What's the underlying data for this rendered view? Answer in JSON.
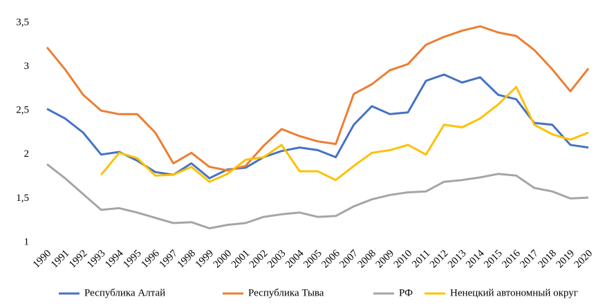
{
  "chart_data": {
    "type": "line",
    "categories": [
      "1990",
      "1991",
      "1992",
      "1993",
      "1994",
      "1995",
      "1996",
      "1997",
      "1998",
      "1999",
      "2000",
      "2001",
      "2002",
      "2003",
      "2004",
      "2005",
      "2006",
      "2007",
      "2008",
      "2009",
      "2010",
      "2011",
      "2012",
      "2013",
      "2014",
      "2015",
      "2016",
      "2017",
      "2018",
      "2019",
      "2020"
    ],
    "series": [
      {
        "name": "Республика Алтай",
        "color": "#4472c4",
        "values": [
          2.52,
          2.41,
          2.25,
          2.0,
          2.03,
          1.93,
          1.8,
          1.77,
          1.9,
          1.73,
          1.83,
          1.85,
          1.97,
          2.04,
          2.08,
          2.05,
          1.97,
          2.34,
          2.55,
          2.46,
          2.48,
          2.84,
          2.91,
          2.82,
          2.88,
          2.68,
          2.63,
          2.36,
          2.34,
          2.11,
          2.08
        ]
      },
      {
        "name": "Республика Тыва",
        "color": "#ed7d31",
        "values": [
          3.22,
          2.97,
          2.68,
          2.5,
          2.46,
          2.46,
          2.25,
          1.9,
          2.02,
          1.86,
          1.82,
          1.87,
          2.1,
          2.29,
          2.21,
          2.15,
          2.12,
          2.69,
          2.8,
          2.96,
          3.03,
          3.25,
          3.34,
          3.41,
          3.46,
          3.39,
          3.35,
          3.19,
          2.97,
          2.72,
          2.98
        ]
      },
      {
        "name": "РФ",
        "color": "#a5a5a5",
        "values": [
          1.89,
          1.73,
          1.55,
          1.37,
          1.39,
          1.34,
          1.28,
          1.22,
          1.23,
          1.16,
          1.2,
          1.22,
          1.29,
          1.32,
          1.34,
          1.29,
          1.3,
          1.41,
          1.49,
          1.54,
          1.57,
          1.58,
          1.69,
          1.71,
          1.74,
          1.78,
          1.76,
          1.62,
          1.58,
          1.5,
          1.51
        ]
      },
      {
        "name": "Ненецкий автономный округ",
        "color": "#ffc000",
        "values": [
          null,
          null,
          null,
          1.77,
          2.02,
          1.96,
          1.76,
          1.77,
          1.86,
          1.69,
          1.78,
          1.94,
          1.97,
          2.11,
          1.81,
          1.81,
          1.71,
          1.87,
          2.02,
          2.05,
          2.11,
          2.0,
          2.34,
          2.31,
          2.41,
          2.57,
          2.77,
          2.34,
          2.23,
          2.17,
          2.25
        ]
      }
    ],
    "ylim": [
      1,
      3.5
    ],
    "yticks": [
      1,
      {
        "value": 1.5,
        "label": "1,5"
      },
      2,
      {
        "value": 2.5,
        "label": "2,5"
      },
      3,
      {
        "value": 3.5,
        "label": "3,5"
      }
    ],
    "legend": "bottom"
  }
}
